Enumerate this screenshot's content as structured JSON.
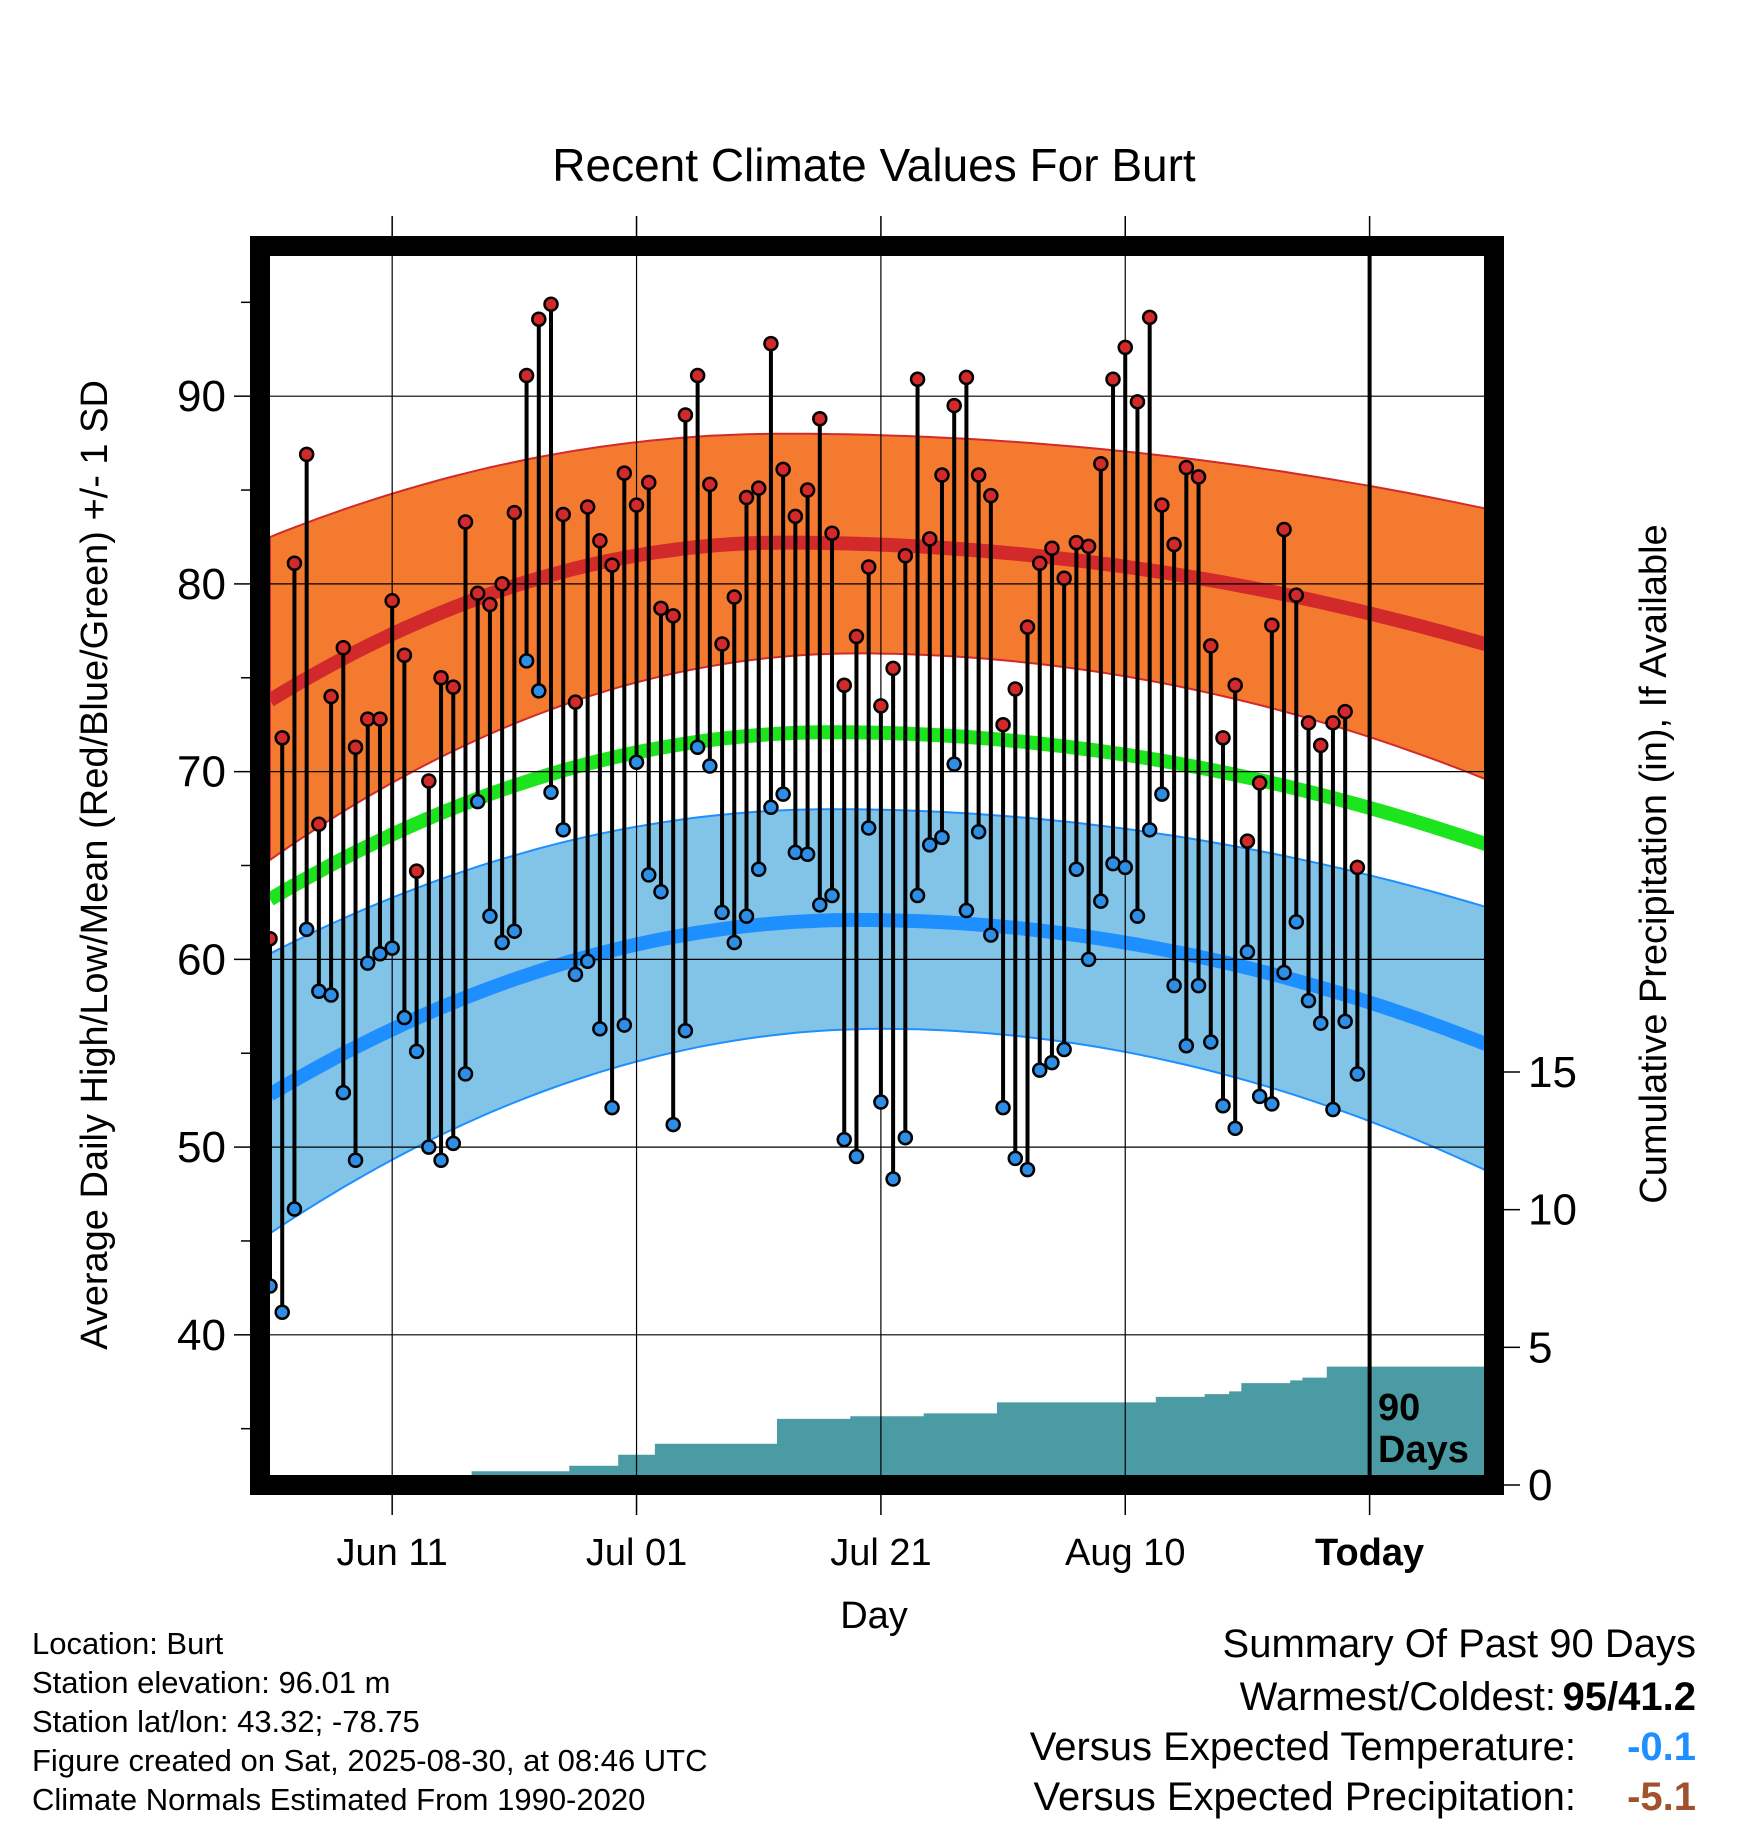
{
  "chart_data": {
    "type": "line",
    "title": "Recent Climate Values For Burt",
    "xlabel": "Day",
    "ylabel": "Average Daily High/Low/Mean (Red/Blue/Green) +/- 1 SD",
    "y2label": "Cumulative Precipitation (in), If Available",
    "x_ticks": [
      "Jun 11",
      "Jul 01",
      "Jul 21",
      "Aug 10",
      "Today"
    ],
    "x_tick_day_index": [
      10,
      30,
      50,
      70,
      90
    ],
    "ylim": [
      32,
      98
    ],
    "y_ticks": [
      40,
      50,
      60,
      70,
      80,
      90
    ],
    "y2_ticks": [
      0,
      5,
      10,
      15
    ],
    "y2lim": [
      0,
      45
    ],
    "grid": true,
    "annotation": "90 Days",
    "colors": {
      "high_band": "#f47a30",
      "high_normal": "#d22a2a",
      "low_band": "#82c4e8",
      "low_normal": "#1e8fff",
      "mean_normal": "#1de51d",
      "precip": "#4a9ba3",
      "high_point": "#d22a2a",
      "low_point": "#2e8ee6"
    },
    "normal_high": {
      "start": 73.8,
      "peak": 82.2,
      "peak_day": 42,
      "end": 76.5
    },
    "normal_high_upper": {
      "start": 82.5,
      "peak": 88.0,
      "peak_day": 42,
      "end": 83.8
    },
    "normal_high_lower": {
      "start": 65.3,
      "peak": 76.3,
      "peak_day": 48,
      "end": 69.2
    },
    "normal_mean": {
      "start": 63.2,
      "peak": 72.1,
      "peak_day": 46,
      "end": 65.8
    },
    "normal_low": {
      "start": 52.8,
      "peak": 62.1,
      "peak_day": 48,
      "end": 55.1
    },
    "normal_low_upper": {
      "start": 60.3,
      "peak": 68.0,
      "peak_day": 46,
      "end": 62.5
    },
    "normal_low_lower": {
      "start": 45.4,
      "peak": 56.3,
      "peak_day": 50,
      "end": 48.3
    },
    "series": [
      {
        "name": "High",
        "values": [
          61.1,
          71.8,
          81.1,
          86.9,
          67.2,
          74.0,
          76.6,
          71.3,
          72.8,
          72.8,
          79.1,
          76.2,
          64.7,
          69.5,
          75.0,
          74.5,
          83.3,
          79.5,
          78.9,
          80.0,
          83.8,
          91.1,
          94.1,
          94.9,
          83.7,
          73.7,
          84.1,
          82.3,
          81.0,
          85.9,
          84.2,
          85.4,
          78.7,
          78.3,
          89.0,
          91.1,
          85.3,
          76.8,
          79.3,
          84.6,
          85.1,
          92.8,
          86.1,
          83.6,
          85.0,
          88.8,
          82.7,
          74.6,
          77.2,
          80.9,
          73.5,
          75.5,
          81.5,
          90.9,
          82.4,
          85.8,
          89.5,
          91.0,
          85.8,
          84.7,
          72.5,
          74.4,
          77.7,
          81.1,
          81.9,
          80.3,
          82.2,
          82.0,
          86.4,
          90.9,
          92.6,
          89.7,
          94.2,
          84.2,
          82.1,
          86.2,
          85.7,
          76.7,
          71.8,
          74.6,
          66.3,
          69.4,
          77.8,
          82.9,
          79.4,
          72.6,
          71.4,
          72.6,
          73.2,
          64.9
        ]
      },
      {
        "name": "Low",
        "values": [
          42.6,
          41.2,
          46.7,
          61.6,
          58.3,
          58.1,
          52.9,
          49.3,
          59.8,
          60.3,
          60.6,
          56.9,
          55.1,
          50.0,
          49.3,
          50.2,
          53.9,
          68.4,
          62.3,
          60.9,
          61.5,
          75.9,
          74.3,
          68.9,
          66.9,
          59.2,
          59.9,
          56.3,
          52.1,
          56.5,
          70.5,
          64.5,
          63.6,
          51.2,
          56.2,
          71.3,
          70.3,
          62.5,
          60.9,
          62.3,
          64.8,
          68.1,
          68.8,
          65.7,
          65.6,
          62.9,
          63.4,
          50.4,
          49.5,
          67.0,
          52.4,
          48.3,
          50.5,
          63.4,
          66.1,
          66.5,
          70.4,
          62.6,
          66.8,
          61.3,
          52.1,
          49.4,
          48.8,
          54.1,
          54.5,
          55.2,
          64.8,
          60.0,
          63.1,
          65.1,
          64.9,
          62.3,
          66.9,
          68.8,
          58.6,
          55.4,
          58.6,
          55.6,
          52.2,
          51.0,
          60.4,
          52.7,
          52.3,
          59.3,
          62.0,
          57.8,
          56.6,
          52.0,
          56.7,
          53.9
        ]
      },
      {
        "name": "Cumulative Precipitation",
        "values": [
          0,
          0,
          0,
          0,
          0,
          0,
          0,
          0,
          0,
          0,
          0,
          0,
          0,
          0,
          0,
          0,
          0,
          0.5,
          0.5,
          0.5,
          0.5,
          0.5,
          0.5,
          0.5,
          0.5,
          0.7,
          0.7,
          0.7,
          0.7,
          1.1,
          1.1,
          1.1,
          1.5,
          1.5,
          1.5,
          1.5,
          1.5,
          1.5,
          1.5,
          1.5,
          1.5,
          1.5,
          2.4,
          2.4,
          2.4,
          2.4,
          2.4,
          2.4,
          2.5,
          2.5,
          2.5,
          2.5,
          2.5,
          2.5,
          2.6,
          2.6,
          2.6,
          2.6,
          2.6,
          2.6,
          3.0,
          3.0,
          3.0,
          3.0,
          3.0,
          3.0,
          3.0,
          3.0,
          3.0,
          3.0,
          3.0,
          3.0,
          3.0,
          3.2,
          3.2,
          3.2,
          3.2,
          3.3,
          3.3,
          3.4,
          3.7,
          3.7,
          3.7,
          3.7,
          3.8,
          3.9,
          3.9,
          4.3,
          4.3,
          4.3
        ]
      }
    ]
  },
  "info": {
    "location": "Location: Burt",
    "elevation": "Station elevation: 96.01 m",
    "latlon": "Station lat/lon: 43.32; -78.75",
    "created": "Figure created on Sat, 2025-08-30, at 08:46 UTC",
    "normals": "Climate Normals Estimated From 1990-2020"
  },
  "summary": {
    "title": "Summary Of Past 90 Days",
    "warmest_coldest_label": "Warmest/Coldest:",
    "warmest": "95",
    "slash": "/",
    "coldest": "41.2",
    "temp_label": "Versus Expected Temperature:",
    "temp_value": "-0.1",
    "temp_color": "#1e8fff",
    "precip_label": "Versus Expected Precipitation:",
    "precip_value": "-5.1",
    "precip_color": "#a0522d"
  }
}
